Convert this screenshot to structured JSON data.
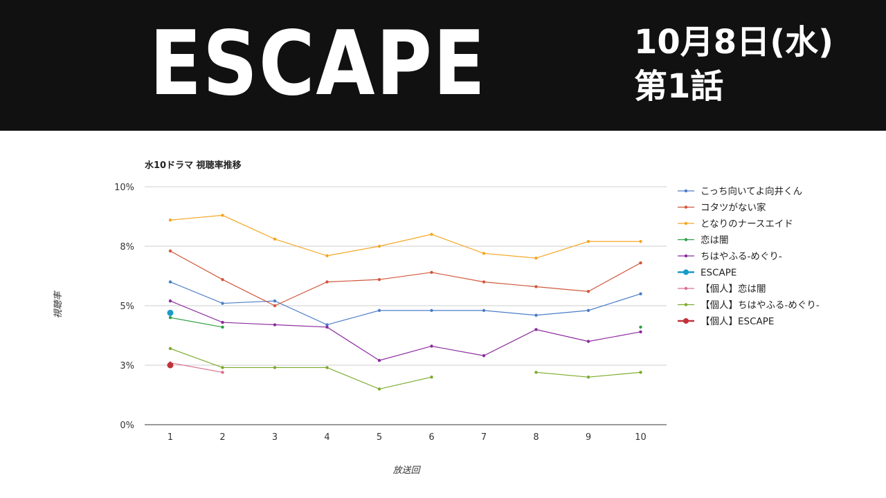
{
  "header": {
    "title": "ESCAPE",
    "air_date": "10月8日(水)",
    "episode": "第1話",
    "background": "#111111"
  },
  "chart_data": {
    "type": "line",
    "title": "水10ドラマ 視聴率推移",
    "xlabel": "放送回",
    "ylabel": "視聴率",
    "x": [
      1,
      2,
      3,
      4,
      5,
      6,
      7,
      8,
      9,
      10
    ],
    "ylim": [
      0,
      10
    ],
    "yticks": [
      0,
      2.5,
      5,
      7.5,
      10
    ],
    "ytick_labels": [
      "0%",
      "3%",
      "5%",
      "8%",
      "10%"
    ],
    "grid": true,
    "legend_position": "right",
    "series": [
      {
        "name": "こっち向いてよ向井くん",
        "color": "#4a7cc7",
        "marker": "small",
        "values": [
          6.0,
          5.1,
          5.2,
          4.2,
          4.8,
          4.8,
          4.8,
          4.6,
          4.8,
          5.5
        ]
      },
      {
        "name": "コタツがない家",
        "color": "#d0573c",
        "marker": "small",
        "values": [
          7.3,
          6.1,
          5.0,
          6.0,
          6.1,
          6.4,
          6.0,
          5.8,
          5.6,
          6.8
        ]
      },
      {
        "name": "となりのナースエイド",
        "color": "#f5a623",
        "marker": "small",
        "values": [
          8.6,
          8.8,
          7.8,
          7.1,
          7.5,
          8.0,
          7.2,
          7.0,
          7.7,
          7.7
        ]
      },
      {
        "name": "恋は闇",
        "color": "#2e9e44",
        "marker": "small",
        "values": [
          4.5,
          4.1,
          null,
          null,
          null,
          null,
          null,
          null,
          null,
          4.1
        ]
      },
      {
        "name": "ちはやふる-めぐり-",
        "color": "#8b2a9e",
        "marker": "small",
        "values": [
          5.2,
          4.3,
          4.2,
          4.1,
          2.7,
          3.3,
          2.9,
          4.0,
          3.5,
          3.9
        ]
      },
      {
        "name": "ESCAPE",
        "color": "#1a9bc9",
        "marker": "large",
        "values": [
          4.7,
          null,
          null,
          null,
          null,
          null,
          null,
          null,
          null,
          null
        ]
      },
      {
        "name": "【個人】恋は闇",
        "color": "#d9708f",
        "marker": "small",
        "values": [
          2.6,
          2.2,
          null,
          null,
          null,
          null,
          null,
          null,
          null,
          null
        ]
      },
      {
        "name": "【個人】ちはやふる-めぐり-",
        "color": "#7aaa2a",
        "marker": "small",
        "values": [
          3.2,
          2.4,
          2.4,
          2.4,
          1.5,
          2.0,
          null,
          2.2,
          2.0,
          2.2
        ]
      },
      {
        "name": "【個人】ESCAPE",
        "color": "#c0323a",
        "marker": "large",
        "values": [
          2.5,
          null,
          null,
          null,
          null,
          null,
          null,
          null,
          null,
          null
        ]
      }
    ]
  }
}
